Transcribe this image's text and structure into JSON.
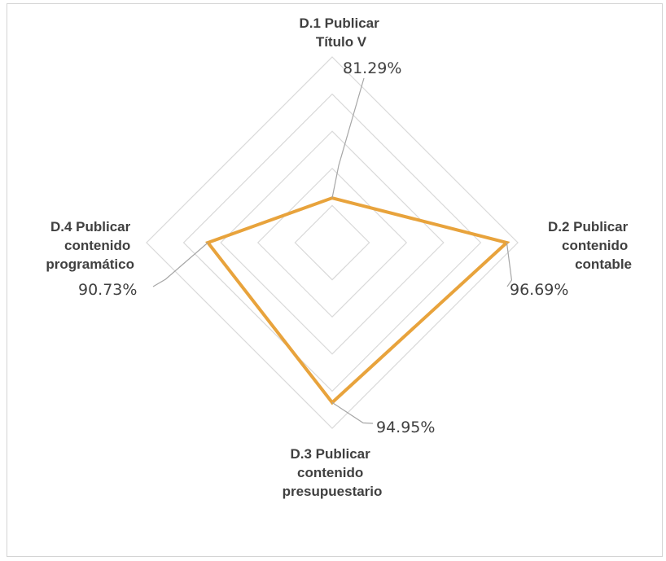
{
  "chart_data": {
    "type": "radar",
    "title": "",
    "axes": [
      {
        "label_lines": [
          "D.1 Publicar",
          "Título V"
        ],
        "value_label": "81.29%",
        "value": 81.29
      },
      {
        "label_lines": [
          "D.2 Publicar",
          "contenido",
          "contable"
        ],
        "value_label": "96.69%",
        "value": 96.69
      },
      {
        "label_lines": [
          "D.3 Publicar",
          "contenido",
          "presupuestario"
        ],
        "value_label": "94.95%",
        "value": 94.95
      },
      {
        "label_lines": [
          "D.4 Publicar",
          "contenido",
          "programático"
        ],
        "value_label": "90.73%",
        "value": 90.73
      }
    ],
    "rmin": 76,
    "rmax": 98,
    "grid_levels": 5,
    "grid": true,
    "legend": "none",
    "colors": {
      "series": "#E8A33C",
      "grid": "#d9d9d9",
      "leader": "#a6a6a6",
      "text": "#404040"
    }
  }
}
